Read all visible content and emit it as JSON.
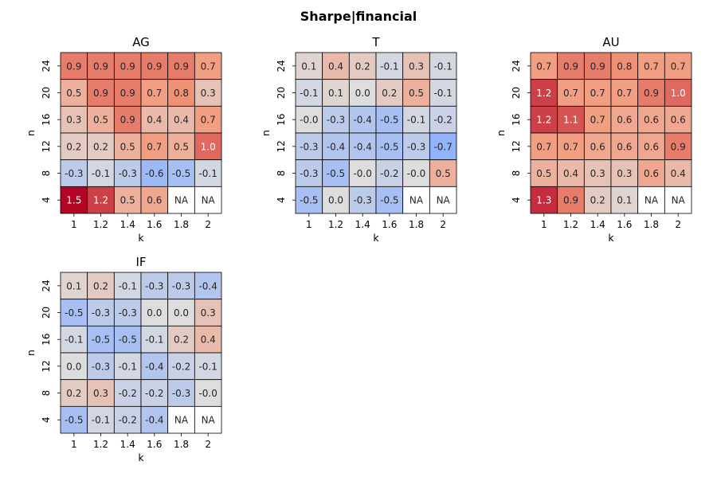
{
  "suptitle": "Sharpe|financial",
  "chart_data": [
    {
      "type": "heatmap",
      "title": "AG",
      "xlabel": "k",
      "ylabel": "n",
      "x": [
        "1",
        "1.2",
        "1.4",
        "1.6",
        "1.8",
        "2"
      ],
      "y": [
        "24",
        "20",
        "16",
        "12",
        "8",
        "4"
      ],
      "values": [
        [
          0.9,
          0.9,
          0.9,
          0.9,
          0.9,
          0.7
        ],
        [
          0.5,
          0.9,
          0.9,
          0.7,
          0.8,
          0.3
        ],
        [
          0.3,
          0.5,
          0.9,
          0.4,
          0.4,
          0.7
        ],
        [
          0.2,
          0.2,
          0.5,
          0.7,
          0.5,
          1.0
        ],
        [
          -0.3,
          -0.1,
          -0.3,
          -0.6,
          -0.5,
          -0.1
        ],
        [
          1.5,
          1.2,
          0.5,
          0.6,
          null,
          null
        ]
      ],
      "labels": [
        [
          "0.9",
          "0.9",
          "0.9",
          "0.9",
          "0.9",
          "0.7"
        ],
        [
          "0.5",
          "0.9",
          "0.9",
          "0.7",
          "0.8",
          "0.3"
        ],
        [
          "0.3",
          "0.5",
          "0.9",
          "0.4",
          "0.4",
          "0.7"
        ],
        [
          "0.2",
          "0.2",
          "0.5",
          "0.7",
          "0.5",
          "1.0"
        ],
        [
          "-0.3",
          "-0.1",
          "-0.3",
          "-0.6",
          "-0.5",
          "-0.1"
        ],
        [
          "1.5",
          "1.2",
          "0.5",
          "0.6",
          "NA",
          "NA"
        ]
      ]
    },
    {
      "type": "heatmap",
      "title": "T",
      "xlabel": "k",
      "ylabel": "n",
      "x": [
        "1",
        "1.2",
        "1.4",
        "1.6",
        "1.8",
        "2"
      ],
      "y": [
        "24",
        "20",
        "16",
        "12",
        "8",
        "4"
      ],
      "values": [
        [
          0.1,
          0.4,
          0.2,
          -0.1,
          0.3,
          -0.1
        ],
        [
          -0.1,
          0.1,
          0.0,
          0.2,
          0.5,
          -0.1
        ],
        [
          -0.0,
          -0.3,
          -0.4,
          -0.5,
          -0.1,
          -0.2
        ],
        [
          -0.3,
          -0.4,
          -0.4,
          -0.5,
          -0.3,
          -0.7
        ],
        [
          -0.3,
          -0.5,
          -0.0,
          -0.2,
          -0.0,
          0.5
        ],
        [
          -0.5,
          0.0,
          -0.3,
          -0.5,
          null,
          null
        ]
      ],
      "labels": [
        [
          "0.1",
          "0.4",
          "0.2",
          "-0.1",
          "0.3",
          "-0.1"
        ],
        [
          "-0.1",
          "0.1",
          "0.0",
          "0.2",
          "0.5",
          "-0.1"
        ],
        [
          "-0.0",
          "-0.3",
          "-0.4",
          "-0.5",
          "-0.1",
          "-0.2"
        ],
        [
          "-0.3",
          "-0.4",
          "-0.4",
          "-0.5",
          "-0.3",
          "-0.7"
        ],
        [
          "-0.3",
          "-0.5",
          "-0.0",
          "-0.2",
          "-0.0",
          "0.5"
        ],
        [
          "-0.5",
          "0.0",
          "-0.3",
          "-0.5",
          "NA",
          "NA"
        ]
      ]
    },
    {
      "type": "heatmap",
      "title": "AU",
      "xlabel": "k",
      "ylabel": "n",
      "x": [
        "1",
        "1.2",
        "1.4",
        "1.6",
        "1.8",
        "2"
      ],
      "y": [
        "24",
        "20",
        "16",
        "12",
        "8",
        "4"
      ],
      "values": [
        [
          0.7,
          0.9,
          0.9,
          0.8,
          0.7,
          0.7
        ],
        [
          1.2,
          0.7,
          0.7,
          0.7,
          0.9,
          1.0
        ],
        [
          1.2,
          1.1,
          0.7,
          0.6,
          0.6,
          0.6
        ],
        [
          0.7,
          0.7,
          0.6,
          0.6,
          0.6,
          0.9
        ],
        [
          0.5,
          0.4,
          0.3,
          0.3,
          0.6,
          0.4
        ],
        [
          1.3,
          0.9,
          0.2,
          0.1,
          null,
          null
        ]
      ],
      "labels": [
        [
          "0.7",
          "0.9",
          "0.9",
          "0.8",
          "0.7",
          "0.7"
        ],
        [
          "1.2",
          "0.7",
          "0.7",
          "0.7",
          "0.9",
          "1.0"
        ],
        [
          "1.2",
          "1.1",
          "0.7",
          "0.6",
          "0.6",
          "0.6"
        ],
        [
          "0.7",
          "0.7",
          "0.6",
          "0.6",
          "0.6",
          "0.9"
        ],
        [
          "0.5",
          "0.4",
          "0.3",
          "0.3",
          "0.6",
          "0.4"
        ],
        [
          "1.3",
          "0.9",
          "0.2",
          "0.1",
          "NA",
          "NA"
        ]
      ]
    },
    {
      "type": "heatmap",
      "title": "IF",
      "xlabel": "k",
      "ylabel": "n",
      "x": [
        "1",
        "1.2",
        "1.4",
        "1.6",
        "1.8",
        "2"
      ],
      "y": [
        "24",
        "20",
        "16",
        "12",
        "8",
        "4"
      ],
      "values": [
        [
          0.1,
          0.2,
          -0.1,
          -0.3,
          -0.3,
          -0.4
        ],
        [
          -0.5,
          -0.3,
          -0.3,
          0.0,
          0.0,
          0.3
        ],
        [
          -0.1,
          -0.5,
          -0.5,
          -0.1,
          0.2,
          0.4
        ],
        [
          0.0,
          -0.3,
          -0.1,
          -0.4,
          -0.2,
          -0.1
        ],
        [
          0.2,
          0.3,
          -0.2,
          -0.2,
          -0.3,
          -0.0
        ],
        [
          -0.5,
          -0.1,
          -0.2,
          -0.4,
          null,
          null
        ]
      ],
      "labels": [
        [
          "0.1",
          "0.2",
          "-0.1",
          "-0.3",
          "-0.3",
          "-0.4"
        ],
        [
          "-0.5",
          "-0.3",
          "-0.3",
          "0.0",
          "0.0",
          "0.3"
        ],
        [
          "-0.1",
          "-0.5",
          "-0.5",
          "-0.1",
          "0.2",
          "0.4"
        ],
        [
          "0.0",
          "-0.3",
          "-0.1",
          "-0.4",
          "-0.2",
          "-0.1"
        ],
        [
          "0.2",
          "0.3",
          "-0.2",
          "-0.2",
          "-0.3",
          "-0.0"
        ],
        [
          "-0.5",
          "-0.1",
          "-0.2",
          "-0.4",
          "NA",
          "NA"
        ]
      ]
    }
  ],
  "colormap": {
    "name": "coolwarm",
    "vmin": -1.5,
    "vmax": 1.5,
    "low": "#3b4cc0",
    "mid": "#dddddd",
    "high": "#b40426",
    "na_fill": "#ffffff"
  }
}
